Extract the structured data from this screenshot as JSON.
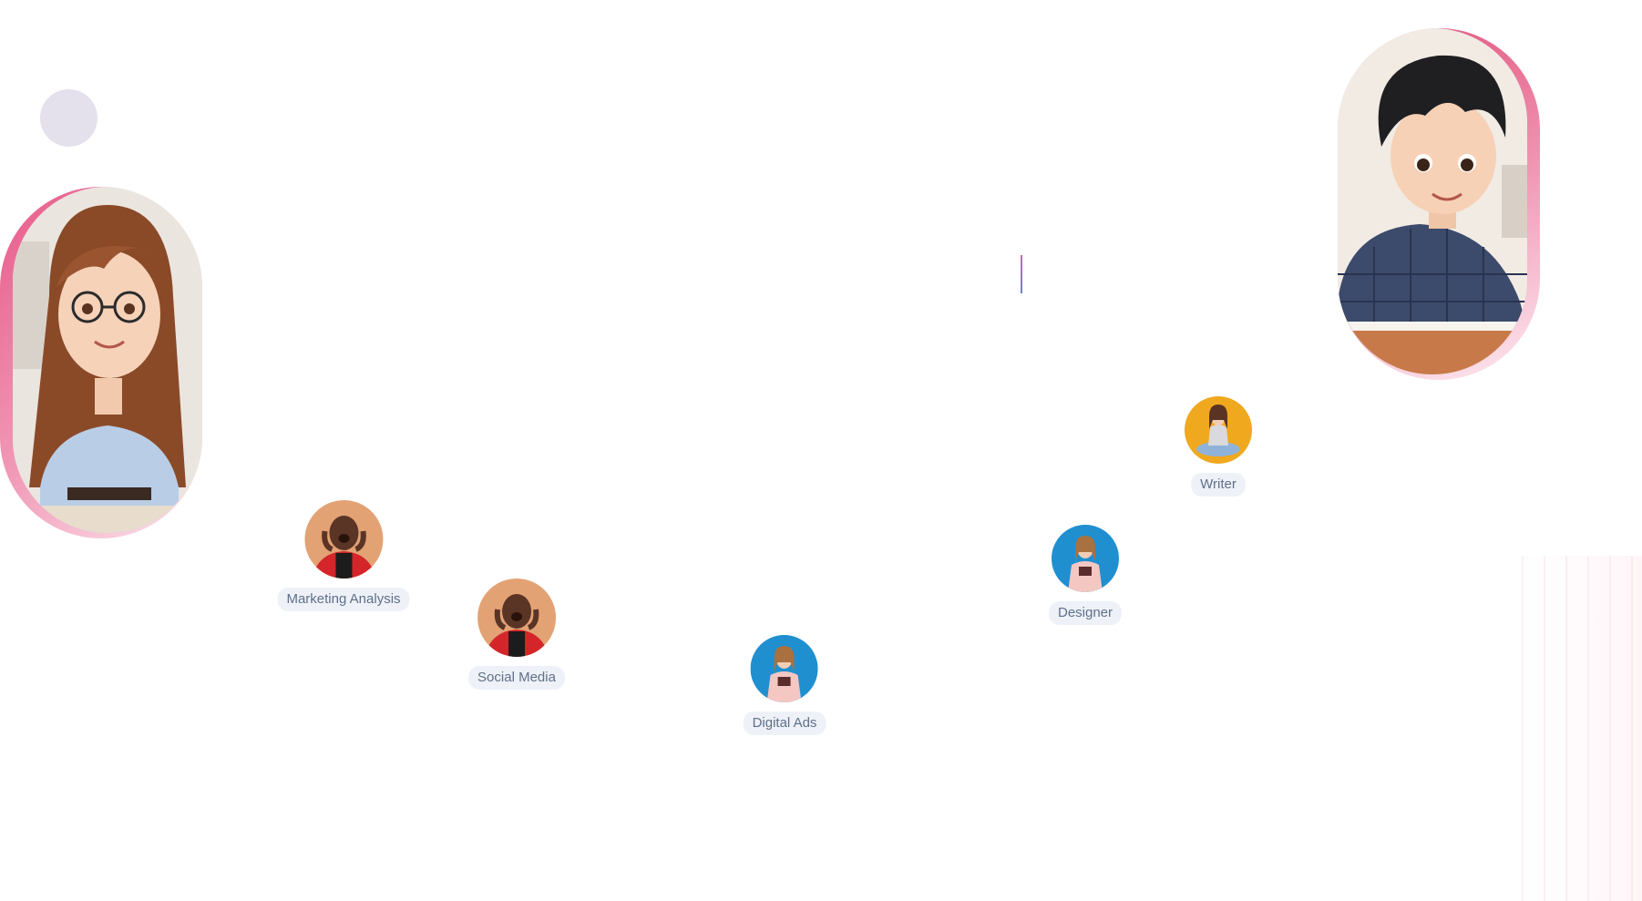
{
  "theme": {
    "accent_pink": "#e85a8a",
    "label_bg": "#eef2f8",
    "label_text": "#5f6f8a",
    "grid_line": "#ececf0"
  },
  "portraits": {
    "left": {
      "icon": "cartoon-girl-with-glasses-portrait"
    },
    "right": {
      "icon": "cartoon-boy-at-desk-portrait"
    }
  },
  "roles": [
    {
      "label": "Marketing Analysis",
      "icon": "shouting-man-avatar",
      "bg": "#e3a274"
    },
    {
      "label": "Social Media",
      "icon": "shouting-man-avatar",
      "bg": "#e3a274"
    },
    {
      "label": "Digital Ads",
      "icon": "woman-with-book-avatar",
      "bg": "#1f8fd0"
    },
    {
      "label": "Designer",
      "icon": "woman-with-book-avatar",
      "bg": "#1f8fd0"
    },
    {
      "label": "Writer",
      "icon": "sitting-woman-avatar",
      "bg": "#f0a81f"
    }
  ]
}
